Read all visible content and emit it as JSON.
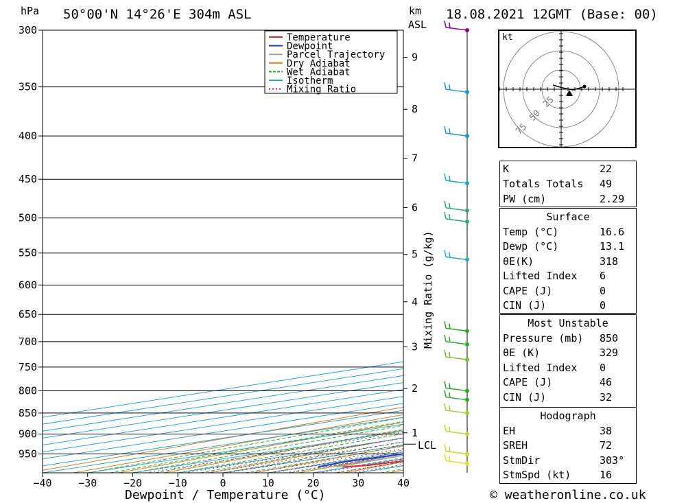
{
  "header": {
    "hpa": "hPa",
    "location": "50°00'N  14°26'E  304m  ASL",
    "km": "km",
    "asl": "ASL",
    "date": "18.08.2021  12GMT  (Base: 00)"
  },
  "footer": "© weatheronline.co.uk",
  "chart_data": {
    "type": "line",
    "title": "50°00'N  14°26'E  304m  ASL",
    "xlabel": "Dewpoint / Temperature (°C)",
    "ylabel": "hPa",
    "y2label": "Mixing Ratio (g/kg)",
    "km_label": "km",
    "x_ticks": [
      "−40",
      "−30",
      "−20",
      "−10",
      "0",
      "10",
      "20",
      "30",
      "40"
    ],
    "x_tick_values": [
      -40,
      -30,
      -20,
      -10,
      0,
      10,
      20,
      30,
      40
    ],
    "p_ticks": [
      300,
      350,
      400,
      450,
      500,
      550,
      600,
      650,
      700,
      750,
      800,
      850,
      900,
      950
    ],
    "km_ticks": [
      {
        "label": "1",
        "p": 897
      },
      {
        "label": "2",
        "p": 795
      },
      {
        "label": "3",
        "p": 710
      },
      {
        "label": "4",
        "p": 628
      },
      {
        "label": "5",
        "p": 552
      },
      {
        "label": "6",
        "p": 486
      },
      {
        "label": "7",
        "p": 425
      },
      {
        "label": "8",
        "p": 372
      },
      {
        "label": "9",
        "p": 323
      }
    ],
    "lcl": {
      "label": "LCL",
      "p": 925
    },
    "mixing_ratio_labels": [
      "1",
      "2",
      "3",
      "4",
      "6",
      "8",
      "10",
      "16",
      "20",
      "25"
    ],
    "series": [
      {
        "name": "Temperature",
        "color": "#e8262b",
        "points": [
          [
            984,
            18.1
          ],
          [
            980,
            21.3
          ],
          [
            970,
            22.6
          ],
          [
            950,
            21.5
          ],
          [
            925,
            20.2
          ],
          [
            900,
            18.8
          ],
          [
            875,
            17.4
          ],
          [
            850,
            15.9
          ],
          [
            825,
            14.8
          ],
          [
            800,
            13.6
          ],
          [
            785,
            13.6
          ],
          [
            770,
            13.4
          ],
          [
            750,
            12.5
          ],
          [
            735,
            11.7
          ],
          [
            725,
            12.0
          ],
          [
            700,
            11.0
          ],
          [
            675,
            10.2
          ],
          [
            650,
            9.2
          ],
          [
            625,
            8.4
          ],
          [
            600,
            6.6
          ],
          [
            575,
            5.3
          ],
          [
            550,
            4.6
          ],
          [
            525,
            3.3
          ],
          [
            500,
            1.8
          ],
          [
            480,
            0.9
          ],
          [
            470,
            1.0
          ],
          [
            450,
            -0.1
          ],
          [
            400,
            -4.4
          ],
          [
            350,
            -9.1
          ],
          [
            325,
            -11.9
          ],
          [
            300,
            -14.6
          ]
        ]
      },
      {
        "name": "Dewpoint",
        "color": "#1a3fd6",
        "points": [
          [
            984,
            12.6
          ],
          [
            970,
            11.2
          ],
          [
            950,
            12.6
          ],
          [
            925,
            14.6
          ],
          [
            900,
            15.6
          ],
          [
            875,
            16.3
          ],
          [
            850,
            16.5
          ],
          [
            825,
            16.5
          ],
          [
            800,
            13.6
          ],
          [
            780,
            1.1
          ],
          [
            760,
            4.6
          ],
          [
            740,
            3.6
          ],
          [
            725,
            -11.4
          ],
          [
            710,
            -3.4
          ],
          [
            700,
            4.6
          ],
          [
            680,
            -2.4
          ],
          [
            660,
            -9.4
          ],
          [
            640,
            -14.4
          ],
          [
            620,
            -9.4
          ],
          [
            600,
            -4.4
          ],
          [
            580,
            -1.4
          ],
          [
            560,
            -6.4
          ],
          [
            550,
            -12.4
          ],
          [
            525,
            -1.4
          ],
          [
            515,
            10.6
          ],
          [
            500,
            7.6
          ],
          [
            490,
            2.6
          ],
          [
            485,
            1.6
          ],
          [
            475,
            3.6
          ],
          [
            470,
            -8.4
          ],
          [
            460,
            -10.4
          ],
          [
            450,
            -11.4
          ],
          [
            400,
            -15.4
          ],
          [
            350,
            -22.4
          ],
          [
            300,
            -27.4
          ]
        ]
      },
      {
        "name": "Parcel Trajectory",
        "color": "#a0a0a0",
        "points": [
          [
            984,
            16.6
          ],
          [
            950,
            14.6
          ],
          [
            925,
            13.3
          ],
          [
            900,
            12.1
          ],
          [
            850,
            9.8
          ],
          [
            800,
            7.6
          ],
          [
            750,
            5.4
          ],
          [
            700,
            3.0
          ],
          [
            650,
            0.4
          ],
          [
            600,
            -2.6
          ],
          [
            550,
            -6.1
          ],
          [
            500,
            -10.1
          ],
          [
            450,
            -14.8
          ],
          [
            400,
            -20.4
          ],
          [
            350,
            -27.2
          ],
          [
            300,
            -35.2
          ]
        ]
      },
      {
        "name": "Dry Adiabat",
        "color": "#e07a10"
      },
      {
        "name": "Wet Adiabat",
        "color": "#20b020"
      },
      {
        "name": "Isotherm",
        "color": "#20a8e0"
      },
      {
        "name": "Mixing Ratio",
        "color": "#c4007f"
      }
    ],
    "legend_position": "top-right",
    "hodograph": {
      "unit": "kt",
      "rings": [
        "25",
        "50",
        "75"
      ]
    }
  },
  "stats": {
    "indices": [
      [
        "K",
        "22"
      ],
      [
        "Totals Totals",
        "49"
      ],
      [
        "PW (cm)",
        "2.29"
      ]
    ],
    "surface_title": "Surface",
    "surface": [
      [
        "Temp (°C)",
        "16.6"
      ],
      [
        "Dewp (°C)",
        "13.1"
      ],
      [
        "θE(K)",
        "318"
      ],
      [
        "Lifted Index",
        "6"
      ],
      [
        "CAPE (J)",
        "0"
      ],
      [
        "CIN (J)",
        "0"
      ]
    ],
    "mu_title": "Most Unstable",
    "mu": [
      [
        "Pressure (mb)",
        "850"
      ],
      [
        "θE (K)",
        "329"
      ],
      [
        "Lifted Index",
        "0"
      ],
      [
        "CAPE (J)",
        "46"
      ],
      [
        "CIN (J)",
        "32"
      ]
    ],
    "hodo_title": "Hodograph",
    "hodo": [
      [
        "EH",
        "38"
      ],
      [
        "SREH",
        "72"
      ],
      [
        "StmDir",
        "303°"
      ],
      [
        "StmSpd (kt)",
        "16"
      ]
    ]
  }
}
